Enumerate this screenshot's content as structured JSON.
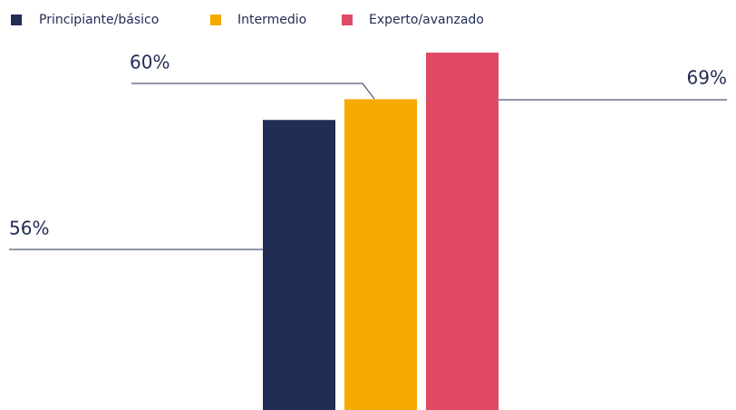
{
  "chart_data": {
    "type": "bar",
    "categories": [
      null
    ],
    "series": [
      {
        "name": "Principiante/básico",
        "color": "#222d55",
        "values": [
          56
        ],
        "value_labels": [
          "56%"
        ]
      },
      {
        "name": "Intermedio",
        "color": "#f5aa00",
        "values": [
          60
        ],
        "value_labels": [
          "60%"
        ]
      },
      {
        "name": "Experto/avanzado",
        "color": "#e04a64",
        "values": [
          69
        ],
        "value_labels": [
          "69%"
        ]
      }
    ],
    "legend": "top-left"
  }
}
